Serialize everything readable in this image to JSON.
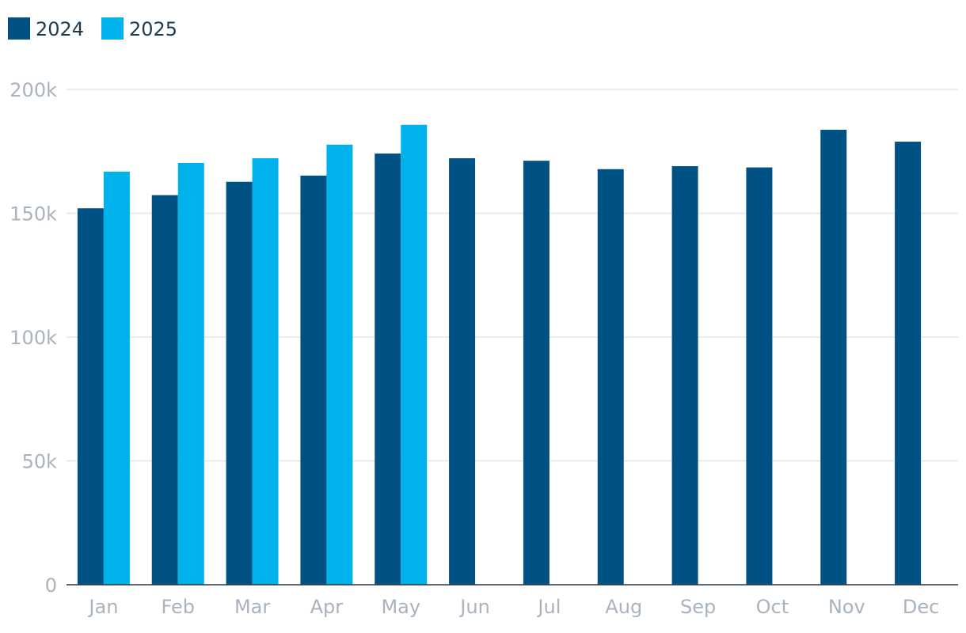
{
  "chart_data": {
    "type": "bar",
    "categories": [
      "Jan",
      "Feb",
      "Mar",
      "Apr",
      "May",
      "Jun",
      "Jul",
      "Aug",
      "Sep",
      "Oct",
      "Nov",
      "Dec"
    ],
    "series": [
      {
        "name": "2024",
        "color": "#005285",
        "values": [
          152000,
          157300,
          162700,
          165200,
          174100,
          172200,
          171200,
          167800,
          169000,
          168500,
          183700,
          178900
        ]
      },
      {
        "name": "2025",
        "color": "#00b2ec",
        "values": [
          166800,
          170300,
          172200,
          177700,
          185700,
          null,
          null,
          null,
          null,
          null,
          null,
          null
        ]
      }
    ],
    "ylim": [
      0,
      200000
    ],
    "yticks": [
      {
        "value": 0,
        "label": "0"
      },
      {
        "value": 50000,
        "label": "50k"
      },
      {
        "value": 100000,
        "label": "100k"
      },
      {
        "value": 150000,
        "label": "150k"
      },
      {
        "value": 200000,
        "label": "200k"
      }
    ],
    "title": "",
    "xlabel": "",
    "ylabel": "",
    "legend_position": "top-left",
    "grid": true
  }
}
